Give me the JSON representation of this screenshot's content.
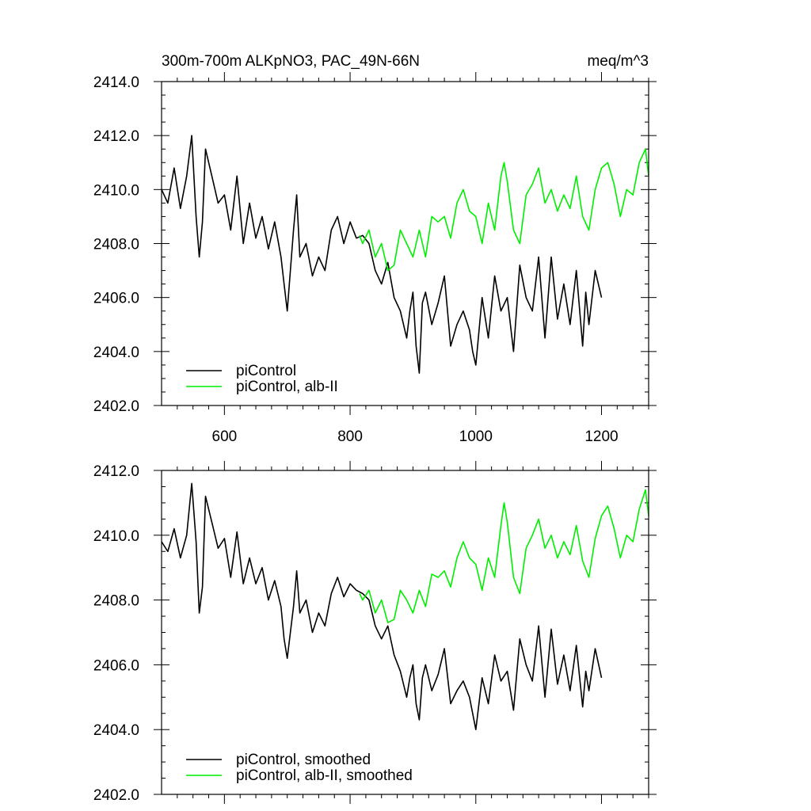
{
  "colors": {
    "picontrol": "#000000",
    "alb": "#00ee00"
  },
  "chart_data": [
    {
      "type": "line",
      "title": "300m-700m ALKpNO3, PAC_49N-66N",
      "units": "meq/m^3",
      "xlim": [
        500,
        1275
      ],
      "ylim": [
        2402,
        2414
      ],
      "xticks": [
        600,
        800,
        1000,
        1200
      ],
      "xtick_labels": [
        "600",
        "800",
        "1000",
        "1200"
      ],
      "yticks": [
        2402,
        2404,
        2406,
        2408,
        2410,
        2412,
        2414
      ],
      "ytick_labels": [
        "2402.0",
        "2404.0",
        "2406.0",
        "2408.0",
        "2410.0",
        "2412.0",
        "2414.0"
      ],
      "legend_position": "bottom-left",
      "series": [
        {
          "name": "piControl",
          "color": "#000000",
          "x": [
            500,
            510,
            520,
            530,
            540,
            548,
            555,
            560,
            565,
            570,
            580,
            590,
            600,
            610,
            620,
            630,
            640,
            650,
            660,
            670,
            680,
            690,
            695,
            700,
            710,
            715,
            720,
            730,
            740,
            750,
            760,
            770,
            780,
            790,
            800,
            810,
            820,
            830,
            840,
            850,
            860,
            870,
            880,
            890,
            895,
            900,
            905,
            910,
            915,
            920,
            930,
            940,
            950,
            960,
            970,
            980,
            990,
            995,
            1000,
            1010,
            1020,
            1030,
            1040,
            1050,
            1060,
            1070,
            1080,
            1090,
            1100,
            1110,
            1120,
            1130,
            1140,
            1150,
            1160,
            1170,
            1175,
            1180,
            1190,
            1200
          ],
          "y": [
            2410.0,
            2409.5,
            2410.8,
            2409.3,
            2410.5,
            2412.0,
            2409.0,
            2407.5,
            2408.8,
            2411.5,
            2410.5,
            2409.5,
            2409.8,
            2408.5,
            2410.5,
            2408.0,
            2409.5,
            2408.2,
            2409.0,
            2407.8,
            2408.8,
            2407.5,
            2406.5,
            2405.5,
            2408.5,
            2409.8,
            2407.5,
            2408.0,
            2406.8,
            2407.5,
            2407.0,
            2408.5,
            2409.0,
            2408.0,
            2408.8,
            2408.2,
            2408.3,
            2408.0,
            2407.0,
            2406.5,
            2407.3,
            2406.0,
            2405.5,
            2404.5,
            2405.5,
            2406.2,
            2404.2,
            2403.2,
            2405.8,
            2406.2,
            2405.0,
            2405.8,
            2406.8,
            2404.2,
            2405.0,
            2405.5,
            2404.8,
            2404.0,
            2403.5,
            2406.0,
            2404.5,
            2406.8,
            2405.5,
            2406.0,
            2404.0,
            2407.2,
            2406.0,
            2405.5,
            2407.5,
            2404.5,
            2407.5,
            2405.2,
            2406.5,
            2405.0,
            2407.0,
            2404.2,
            2406.2,
            2405.0,
            2407.0,
            2406.0
          ]
        },
        {
          "name": "piControl, alb-II",
          "color": "#00ee00",
          "x": [
            815,
            820,
            830,
            840,
            850,
            860,
            870,
            880,
            890,
            900,
            910,
            920,
            930,
            940,
            950,
            960,
            970,
            980,
            990,
            1000,
            1010,
            1020,
            1030,
            1040,
            1045,
            1050,
            1060,
            1070,
            1080,
            1090,
            1100,
            1110,
            1120,
            1130,
            1140,
            1150,
            1160,
            1170,
            1180,
            1190,
            1200,
            1210,
            1220,
            1230,
            1240,
            1250,
            1260,
            1270,
            1275
          ],
          "y": [
            2408.3,
            2408.0,
            2408.5,
            2407.5,
            2408.0,
            2407.0,
            2407.2,
            2408.5,
            2408.0,
            2407.5,
            2408.5,
            2407.5,
            2409.0,
            2408.8,
            2409.0,
            2408.2,
            2409.5,
            2410.0,
            2409.2,
            2409.0,
            2408.0,
            2409.5,
            2408.5,
            2410.5,
            2411.0,
            2410.3,
            2408.5,
            2408.0,
            2409.8,
            2410.2,
            2410.8,
            2409.5,
            2410.0,
            2409.2,
            2409.8,
            2409.3,
            2410.5,
            2409.0,
            2408.5,
            2410.0,
            2410.8,
            2411.0,
            2410.2,
            2409.0,
            2410.0,
            2409.8,
            2411.0,
            2411.5,
            2410.5
          ]
        }
      ]
    },
    {
      "type": "line",
      "xlim": [
        500,
        1275
      ],
      "ylim": [
        2402,
        2412
      ],
      "xticks": [
        600,
        800,
        1000,
        1200
      ],
      "yticks": [
        2402,
        2404,
        2406,
        2408,
        2410,
        2412
      ],
      "ytick_labels": [
        "2402.0",
        "2404.0",
        "2406.0",
        "2408.0",
        "2410.0",
        "2412.0"
      ],
      "legend_position": "bottom-left",
      "series": [
        {
          "name": "piControl, smoothed",
          "color": "#000000",
          "x": [
            500,
            510,
            520,
            530,
            540,
            548,
            555,
            560,
            565,
            570,
            580,
            590,
            600,
            610,
            620,
            630,
            640,
            650,
            660,
            670,
            680,
            690,
            695,
            700,
            710,
            715,
            720,
            730,
            740,
            750,
            760,
            770,
            780,
            790,
            800,
            810,
            820,
            830,
            840,
            850,
            860,
            870,
            880,
            890,
            895,
            900,
            905,
            910,
            915,
            920,
            930,
            940,
            950,
            960,
            970,
            980,
            990,
            995,
            1000,
            1010,
            1020,
            1030,
            1040,
            1050,
            1060,
            1070,
            1080,
            1090,
            1100,
            1110,
            1120,
            1130,
            1140,
            1150,
            1160,
            1170,
            1175,
            1180,
            1190,
            1200
          ],
          "y": [
            2409.8,
            2409.5,
            2410.2,
            2409.3,
            2410.0,
            2411.6,
            2409.8,
            2407.6,
            2408.4,
            2411.2,
            2410.4,
            2409.6,
            2409.9,
            2408.7,
            2410.1,
            2408.5,
            2409.3,
            2408.5,
            2409.0,
            2408.0,
            2408.6,
            2407.8,
            2406.8,
            2406.2,
            2407.8,
            2408.9,
            2407.6,
            2408.0,
            2407.0,
            2407.6,
            2407.2,
            2408.2,
            2408.7,
            2408.1,
            2408.5,
            2408.3,
            2408.2,
            2408.0,
            2407.2,
            2406.8,
            2407.2,
            2406.3,
            2405.8,
            2405.0,
            2405.6,
            2406.0,
            2404.8,
            2404.3,
            2405.6,
            2406.0,
            2405.2,
            2405.7,
            2406.5,
            2404.8,
            2405.2,
            2405.5,
            2405.0,
            2404.5,
            2404.0,
            2405.6,
            2404.8,
            2406.3,
            2405.5,
            2405.8,
            2404.6,
            2406.8,
            2406.0,
            2405.5,
            2407.2,
            2405.0,
            2407.1,
            2405.4,
            2406.3,
            2405.2,
            2406.6,
            2404.7,
            2405.8,
            2405.2,
            2406.5,
            2405.6
          ]
        },
        {
          "name": "piControl, alb-II, smoothed",
          "color": "#00ee00",
          "x": [
            815,
            820,
            830,
            840,
            850,
            860,
            870,
            880,
            890,
            900,
            910,
            920,
            930,
            940,
            950,
            960,
            970,
            980,
            990,
            1000,
            1010,
            1020,
            1030,
            1040,
            1045,
            1050,
            1060,
            1070,
            1080,
            1090,
            1100,
            1110,
            1120,
            1130,
            1140,
            1150,
            1160,
            1170,
            1180,
            1190,
            1200,
            1210,
            1220,
            1230,
            1240,
            1250,
            1260,
            1270,
            1275
          ],
          "y": [
            2408.2,
            2408.0,
            2408.3,
            2407.6,
            2408.0,
            2407.3,
            2407.4,
            2408.3,
            2408.0,
            2407.6,
            2408.3,
            2407.8,
            2408.8,
            2408.7,
            2408.9,
            2408.4,
            2409.3,
            2409.8,
            2409.3,
            2409.1,
            2408.3,
            2409.3,
            2408.7,
            2410.3,
            2411.0,
            2410.4,
            2408.7,
            2408.2,
            2409.6,
            2410.0,
            2410.5,
            2409.6,
            2410.0,
            2409.3,
            2409.8,
            2409.4,
            2410.3,
            2409.2,
            2408.7,
            2409.9,
            2410.6,
            2410.9,
            2410.2,
            2409.3,
            2410.0,
            2409.8,
            2410.8,
            2411.4,
            2410.6
          ]
        }
      ]
    }
  ]
}
